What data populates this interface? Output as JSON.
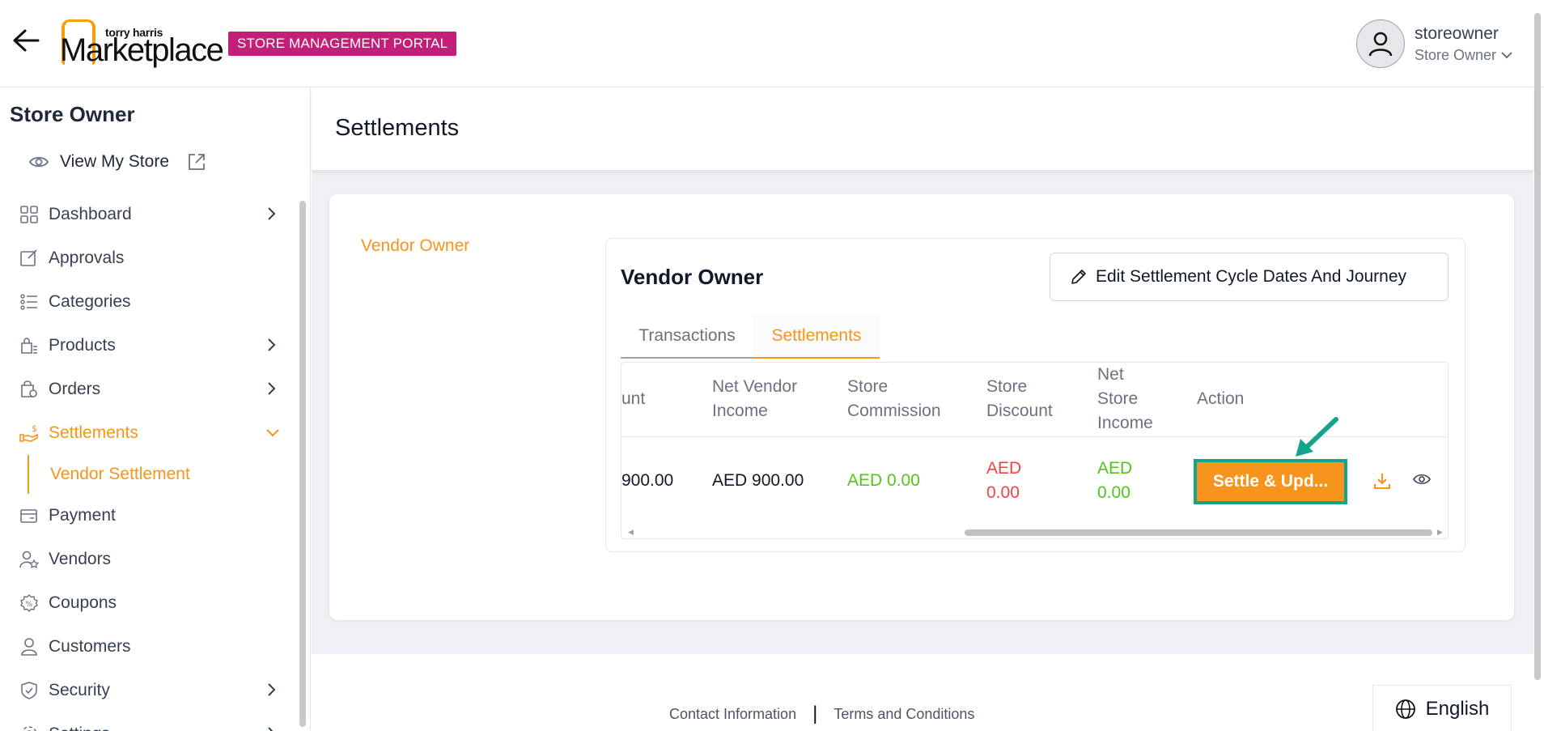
{
  "header": {
    "logo_small": "torry harris",
    "logo_main": "Marketplace",
    "portal_badge": "STORE MANAGEMENT PORTAL",
    "user_name": "storeowner",
    "user_role": "Store Owner"
  },
  "sidebar": {
    "title": "Store Owner",
    "view_store": "View My Store",
    "items": [
      {
        "label": "Dashboard",
        "icon": "dashboard-icon",
        "chevron": true
      },
      {
        "label": "Approvals",
        "icon": "approvals-icon",
        "chevron": false
      },
      {
        "label": "Categories",
        "icon": "categories-icon",
        "chevron": false
      },
      {
        "label": "Products",
        "icon": "products-icon",
        "chevron": true
      },
      {
        "label": "Orders",
        "icon": "orders-icon",
        "chevron": true
      },
      {
        "label": "Settlements",
        "icon": "settlements-icon",
        "chevron": true,
        "active": true
      },
      {
        "label": "Payment",
        "icon": "payment-icon",
        "chevron": false
      },
      {
        "label": "Vendors",
        "icon": "vendors-icon",
        "chevron": false
      },
      {
        "label": "Coupons",
        "icon": "coupons-icon",
        "chevron": false
      },
      {
        "label": "Customers",
        "icon": "customers-icon",
        "chevron": false
      },
      {
        "label": "Security",
        "icon": "security-icon",
        "chevron": true
      },
      {
        "label": "Settings",
        "icon": "settings-icon",
        "chevron": true
      }
    ],
    "sub_item": "Vendor Settlement"
  },
  "main": {
    "page_title": "Settlements",
    "vendor_link": "Vendor Owner",
    "inner_title": "Vendor Owner",
    "edit_button": "Edit Settlement Cycle Dates And Journey",
    "tabs": [
      "Transactions",
      "Settlements"
    ],
    "active_tab": "Settlements",
    "table": {
      "headers": {
        "amount_partial": "unt",
        "net_vendor_income": [
          "Net Vendor",
          "Income"
        ],
        "store_commission": [
          "Store",
          "Commission"
        ],
        "store_discount": [
          "Store",
          "Discount"
        ],
        "net_store_income": [
          "Net",
          "Store",
          "Income"
        ],
        "action": "Action"
      },
      "row": {
        "amount_partial": "900.00",
        "net_vendor_income": "AED 900.00",
        "store_commission": "AED 0.00",
        "store_discount": [
          "AED",
          "0.00"
        ],
        "net_store_income": [
          "AED",
          "0.00"
        ],
        "action_button": "Settle & Upd..."
      }
    }
  },
  "footer": {
    "contact": "Contact Information",
    "separator": "|",
    "terms": "Terms and Conditions",
    "language": "English"
  },
  "colors": {
    "accent": "#f7941d",
    "badge": "#c41f78",
    "highlight": "#14a38b",
    "positive": "#52c41a",
    "negative": "#ef4444"
  }
}
